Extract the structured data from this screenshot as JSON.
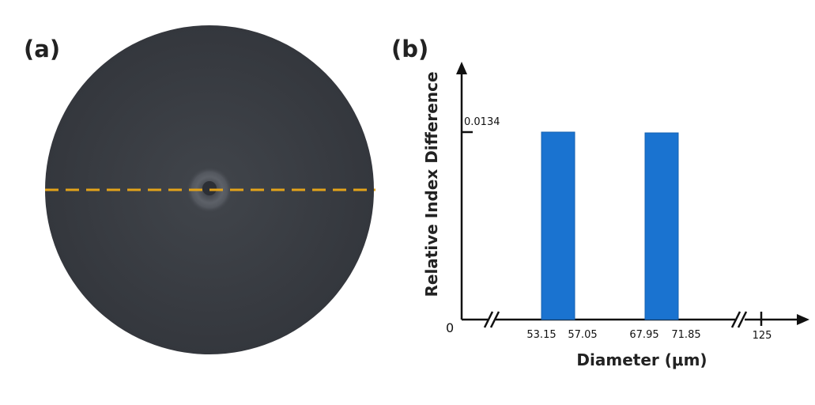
{
  "panel_a": {
    "label": "(a)",
    "colors": {
      "fiber": "#3a3d43",
      "core_ring": "#6a6e75",
      "dashed_line": "#e3a31a"
    }
  },
  "panel_b": {
    "label": "(b)"
  },
  "chart_data": {
    "type": "bar",
    "title": "",
    "xlabel": "Diameter (μm)",
    "ylabel": "Relative Index Difference",
    "ylim": [
      0,
      0.0134
    ],
    "bar_color": "#1a73d0",
    "bars": [
      {
        "x_start": 53.15,
        "x_end": 57.05,
        "value": 0.0134
      },
      {
        "x_start": 67.95,
        "x_end": 71.85,
        "value": 0.0134
      }
    ],
    "x_tick_labels": [
      "53.15",
      "57.05",
      "67.95",
      "71.85",
      "125"
    ],
    "y_tick_labels": [
      "0",
      "0.0134"
    ],
    "axis_break_marks": [
      "//",
      "//"
    ],
    "grid": false,
    "legend": "none"
  }
}
